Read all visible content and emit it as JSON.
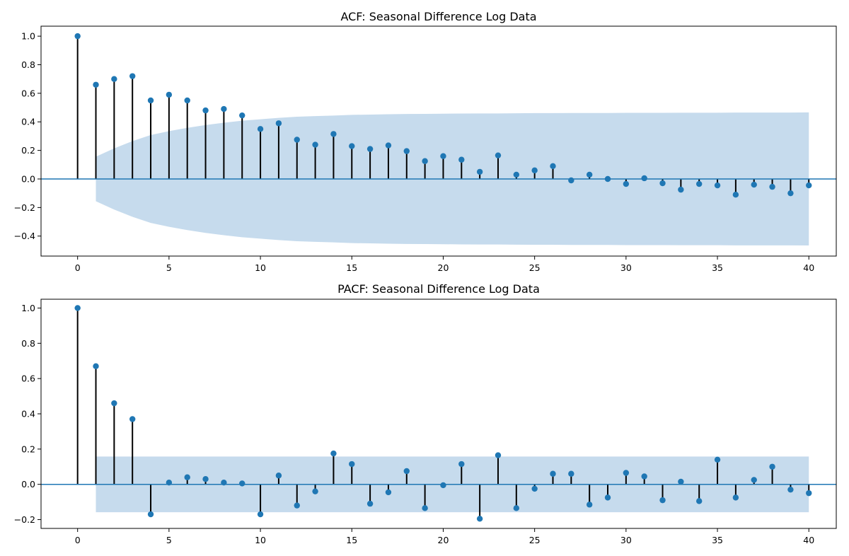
{
  "chart_data": [
    {
      "type": "stem",
      "title": "ACF: Seasonal Difference Log Data",
      "xlabel": "",
      "ylabel": "",
      "xlim": [
        -2,
        41.5
      ],
      "ylim": [
        -0.54,
        1.07
      ],
      "xticks": [
        0,
        5,
        10,
        15,
        20,
        25,
        30,
        35,
        40
      ],
      "yticks": [
        -0.4,
        -0.2,
        0.0,
        0.2,
        0.4,
        0.6,
        0.8,
        1.0
      ],
      "grid": false,
      "lags": [
        0,
        1,
        2,
        3,
        4,
        5,
        6,
        7,
        8,
        9,
        10,
        11,
        12,
        13,
        14,
        15,
        16,
        17,
        18,
        19,
        20,
        21,
        22,
        23,
        24,
        25,
        26,
        27,
        28,
        29,
        30,
        31,
        32,
        33,
        34,
        35,
        36,
        37,
        38,
        39,
        40
      ],
      "values": [
        1.0,
        0.66,
        0.7,
        0.72,
        0.55,
        0.59,
        0.55,
        0.48,
        0.49,
        0.445,
        0.35,
        0.39,
        0.275,
        0.24,
        0.315,
        0.23,
        0.21,
        0.235,
        0.195,
        0.125,
        0.16,
        0.135,
        0.05,
        0.165,
        0.03,
        0.06,
        0.09,
        -0.01,
        0.03,
        0.0,
        -0.035,
        0.005,
        -0.03,
        -0.075,
        -0.035,
        -0.045,
        -0.11,
        -0.04,
        -0.055,
        -0.1,
        -0.045
      ],
      "confidence_band": {
        "lags": [
          1,
          2,
          3,
          4,
          5,
          6,
          7,
          8,
          9,
          10,
          11,
          12,
          13,
          14,
          15,
          16,
          17,
          18,
          19,
          20,
          21,
          22,
          23,
          24,
          25,
          26,
          27,
          28,
          29,
          30,
          31,
          32,
          33,
          34,
          35,
          36,
          37,
          38,
          39,
          40
        ],
        "upper": [
          0.156,
          0.214,
          0.265,
          0.308,
          0.335,
          0.358,
          0.378,
          0.394,
          0.408,
          0.418,
          0.428,
          0.436,
          0.44,
          0.444,
          0.449,
          0.451,
          0.453,
          0.455,
          0.456,
          0.457,
          0.458,
          0.459,
          0.459,
          0.46,
          0.461,
          0.461,
          0.462,
          0.462,
          0.462,
          0.463,
          0.463,
          0.463,
          0.464,
          0.464,
          0.464,
          0.465,
          0.465,
          0.465,
          0.465,
          0.466
        ]
      },
      "colors": {
        "marker": "#1f77b4",
        "stem": "#000000",
        "band": "#c6dbed",
        "zero_line": "#1f77b4"
      }
    },
    {
      "type": "stem",
      "title": "PACF: Seasonal Difference Log Data",
      "xlabel": "",
      "ylabel": "",
      "xlim": [
        -2,
        41.5
      ],
      "ylim": [
        -0.25,
        1.05
      ],
      "xticks": [
        0,
        5,
        10,
        15,
        20,
        25,
        30,
        35,
        40
      ],
      "yticks": [
        -0.2,
        0.0,
        0.2,
        0.4,
        0.6,
        0.8,
        1.0
      ],
      "grid": false,
      "lags": [
        0,
        1,
        2,
        3,
        4,
        5,
        6,
        7,
        8,
        9,
        10,
        11,
        12,
        13,
        14,
        15,
        16,
        17,
        18,
        19,
        20,
        21,
        22,
        23,
        24,
        25,
        26,
        27,
        28,
        29,
        30,
        31,
        32,
        33,
        34,
        35,
        36,
        37,
        38,
        39,
        40
      ],
      "values": [
        1.0,
        0.67,
        0.46,
        0.37,
        -0.17,
        0.01,
        0.04,
        0.03,
        0.01,
        0.005,
        -0.17,
        0.05,
        -0.12,
        -0.04,
        0.175,
        0.115,
        -0.11,
        -0.045,
        0.075,
        -0.135,
        -0.005,
        0.115,
        -0.195,
        0.165,
        -0.135,
        -0.025,
        0.06,
        0.06,
        -0.115,
        -0.075,
        0.065,
        0.045,
        -0.09,
        0.015,
        -0.095,
        0.14,
        -0.075,
        0.025,
        0.1,
        -0.03,
        -0.05
      ],
      "confidence_band": {
        "lags": [
          1,
          40
        ],
        "upper": [
          0.158,
          0.158
        ]
      },
      "colors": {
        "marker": "#1f77b4",
        "stem": "#000000",
        "band": "#c6dbed",
        "zero_line": "#1f77b4"
      }
    }
  ]
}
